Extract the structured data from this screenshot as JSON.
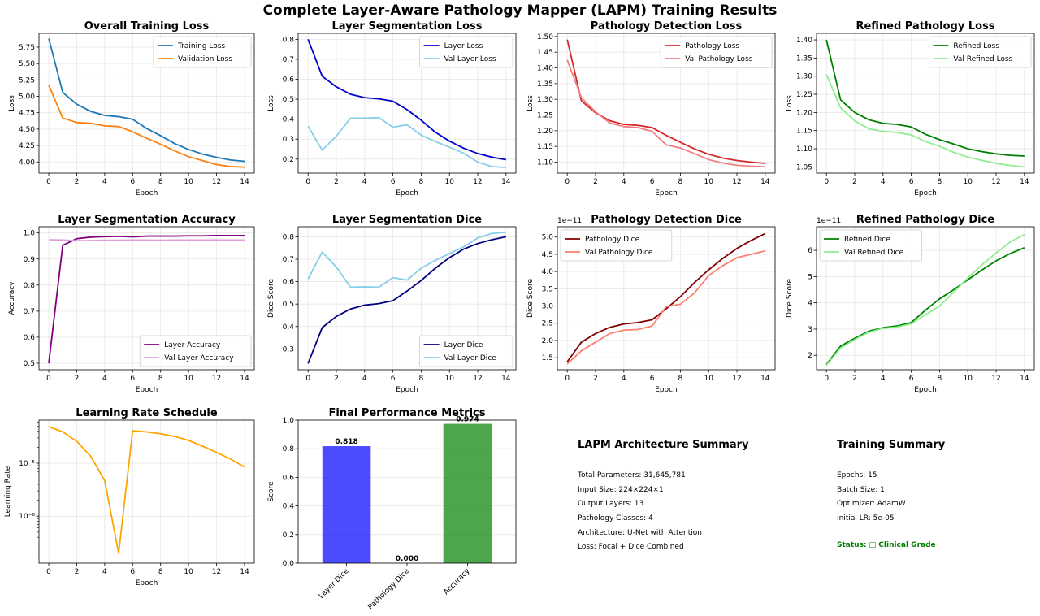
{
  "figure_title": "Complete Layer-Aware Pathology Mapper (LAPM) Training Results",
  "colors": {
    "training_loss": "#1f77b4",
    "validation_loss": "#ff7f0e",
    "layer": "#0000cd",
    "val_layer": "#87ceeb",
    "pathology": "#d62728",
    "val_pathology": "#f08080",
    "refined": "#008000",
    "val_refined": "#90ee90",
    "accuracy": "#800080",
    "val_accuracy": "#dda0dd",
    "dice": "#000080",
    "val_dice": "#87ceeb",
    "path_dice": "#800000",
    "val_path_dice": "#fa8072",
    "lr": "#ffa500",
    "bar_layer": "#0000ff",
    "bar_pathology": "#ff0000",
    "bar_accuracy": "#008000"
  },
  "chart_data": [
    {
      "id": "overall_loss",
      "type": "line",
      "title": "Overall Training Loss",
      "xlabel": "Epoch",
      "ylabel": "Loss",
      "xlim": [
        -0.7,
        14.7
      ],
      "ylim": [
        3.83,
        5.96
      ],
      "xticks": [
        0,
        2,
        4,
        6,
        8,
        10,
        12,
        14
      ],
      "yticks": [
        4.0,
        4.25,
        4.5,
        4.75,
        5.0,
        5.25,
        5.5,
        5.75
      ],
      "ytick_labels": [
        "4.00",
        "4.25",
        "4.50",
        "4.75",
        "5.00",
        "5.25",
        "5.50",
        "5.75"
      ],
      "legend": "upper right",
      "x": [
        0,
        1,
        2,
        3,
        4,
        5,
        6,
        7,
        8,
        9,
        10,
        11,
        12,
        13,
        14
      ],
      "series": [
        {
          "name": "Training Loss",
          "color_key": "training_loss",
          "values": [
            5.88,
            5.06,
            4.88,
            4.77,
            4.71,
            4.69,
            4.65,
            4.51,
            4.4,
            4.28,
            4.19,
            4.12,
            4.07,
            4.03,
            4.01
          ]
        },
        {
          "name": "Validation Loss",
          "color_key": "validation_loss",
          "values": [
            5.17,
            4.67,
            4.6,
            4.59,
            4.55,
            4.54,
            4.46,
            4.36,
            4.27,
            4.17,
            4.08,
            4.02,
            3.96,
            3.93,
            3.92
          ]
        }
      ]
    },
    {
      "id": "layer_seg_loss",
      "type": "line",
      "title": "Layer Segmentation Loss",
      "xlabel": "Epoch",
      "ylabel": "Loss",
      "xlim": [
        -0.7,
        14.7
      ],
      "ylim": [
        0.13,
        0.83
      ],
      "xticks": [
        0,
        2,
        4,
        6,
        8,
        10,
        12,
        14
      ],
      "yticks": [
        0.2,
        0.3,
        0.4,
        0.5,
        0.6,
        0.7,
        0.8
      ],
      "ytick_labels": [
        "0.2",
        "0.3",
        "0.4",
        "0.5",
        "0.6",
        "0.7",
        "0.8"
      ],
      "legend": "upper right",
      "x": [
        0,
        1,
        2,
        3,
        4,
        5,
        6,
        7,
        8,
        9,
        10,
        11,
        12,
        13,
        14
      ],
      "series": [
        {
          "name": "Layer Loss",
          "color_key": "layer",
          "values": [
            0.8,
            0.615,
            0.562,
            0.525,
            0.508,
            0.502,
            0.49,
            0.448,
            0.395,
            0.335,
            0.29,
            0.255,
            0.228,
            0.21,
            0.197
          ]
        },
        {
          "name": "Val Layer Loss",
          "color_key": "val_layer",
          "values": [
            0.365,
            0.245,
            0.315,
            0.405,
            0.405,
            0.408,
            0.36,
            0.372,
            0.32,
            0.288,
            0.26,
            0.23,
            0.185,
            0.163,
            0.158
          ]
        }
      ]
    },
    {
      "id": "pathology_det_loss",
      "type": "line",
      "title": "Pathology Detection Loss",
      "xlabel": "Epoch",
      "ylabel": "Loss",
      "xlim": [
        -0.7,
        14.7
      ],
      "ylim": [
        1.065,
        1.51
      ],
      "xticks": [
        0,
        2,
        4,
        6,
        8,
        10,
        12,
        14
      ],
      "yticks": [
        1.1,
        1.15,
        1.2,
        1.25,
        1.3,
        1.35,
        1.4,
        1.45,
        1.5
      ],
      "ytick_labels": [
        "1.10",
        "1.15",
        "1.20",
        "1.25",
        "1.30",
        "1.35",
        "1.40",
        "1.45",
        "1.50"
      ],
      "legend": "upper right",
      "x": [
        0,
        1,
        2,
        3,
        4,
        5,
        6,
        7,
        8,
        9,
        10,
        11,
        12,
        13,
        14
      ],
      "series": [
        {
          "name": "Pathology Loss",
          "color_key": "pathology",
          "values": [
            1.49,
            1.295,
            1.257,
            1.232,
            1.22,
            1.217,
            1.21,
            1.185,
            1.163,
            1.142,
            1.125,
            1.113,
            1.105,
            1.1,
            1.096
          ]
        },
        {
          "name": "Val Pathology Loss",
          "color_key": "val_pathology",
          "values": [
            1.425,
            1.305,
            1.26,
            1.225,
            1.213,
            1.21,
            1.198,
            1.155,
            1.145,
            1.127,
            1.108,
            1.097,
            1.09,
            1.087,
            1.085
          ]
        }
      ]
    },
    {
      "id": "refined_path_loss",
      "type": "line",
      "title": "Refined Pathology Loss",
      "xlabel": "Epoch",
      "ylabel": "Loss",
      "xlim": [
        -0.7,
        14.7
      ],
      "ylim": [
        1.033,
        1.418
      ],
      "xticks": [
        0,
        2,
        4,
        6,
        8,
        10,
        12,
        14
      ],
      "yticks": [
        1.05,
        1.1,
        1.15,
        1.2,
        1.25,
        1.3,
        1.35,
        1.4
      ],
      "ytick_labels": [
        "1.05",
        "1.10",
        "1.15",
        "1.20",
        "1.25",
        "1.30",
        "1.35",
        "1.40"
      ],
      "legend": "upper right",
      "x": [
        0,
        1,
        2,
        3,
        4,
        5,
        6,
        7,
        8,
        9,
        10,
        11,
        12,
        13,
        14
      ],
      "series": [
        {
          "name": "Refined Loss",
          "color_key": "refined",
          "values": [
            1.4,
            1.235,
            1.2,
            1.18,
            1.17,
            1.167,
            1.16,
            1.14,
            1.125,
            1.113,
            1.1,
            1.092,
            1.086,
            1.082,
            1.08
          ]
        },
        {
          "name": "Val Refined Loss",
          "color_key": "val_refined",
          "values": [
            1.305,
            1.213,
            1.177,
            1.155,
            1.148,
            1.145,
            1.138,
            1.12,
            1.107,
            1.09,
            1.077,
            1.068,
            1.06,
            1.054,
            1.05
          ]
        }
      ]
    },
    {
      "id": "layer_seg_acc",
      "type": "line",
      "title": "Layer Segmentation Accuracy",
      "xlabel": "Epoch",
      "ylabel": "Accuracy",
      "xlim": [
        -0.7,
        14.7
      ],
      "ylim": [
        0.475,
        1.024
      ],
      "xticks": [
        0,
        2,
        4,
        6,
        8,
        10,
        12,
        14
      ],
      "yticks": [
        0.5,
        0.6,
        0.7,
        0.8,
        0.9,
        1.0
      ],
      "ytick_labels": [
        "0.5",
        "0.6",
        "0.7",
        "0.8",
        "0.9",
        "1.0"
      ],
      "legend": "lower right",
      "x": [
        0,
        1,
        2,
        3,
        4,
        5,
        6,
        7,
        8,
        9,
        10,
        11,
        12,
        13,
        14
      ],
      "series": [
        {
          "name": "Layer Accuracy",
          "color_key": "accuracy",
          "values": [
            0.5,
            0.953,
            0.978,
            0.984,
            0.986,
            0.987,
            0.985,
            0.988,
            0.988,
            0.988,
            0.989,
            0.989,
            0.99,
            0.99,
            0.99
          ]
        },
        {
          "name": "Val Layer Accuracy",
          "color_key": "val_accuracy",
          "values": [
            0.974,
            0.973,
            0.97,
            0.971,
            0.972,
            0.972,
            0.973,
            0.973,
            0.972,
            0.973,
            0.973,
            0.973,
            0.973,
            0.973,
            0.973
          ]
        }
      ]
    },
    {
      "id": "layer_seg_dice",
      "type": "line",
      "title": "Layer Segmentation Dice",
      "xlabel": "Epoch",
      "ylabel": "Dice Score",
      "xlim": [
        -0.7,
        14.7
      ],
      "ylim": [
        0.207,
        0.845
      ],
      "xticks": [
        0,
        2,
        4,
        6,
        8,
        10,
        12,
        14
      ],
      "yticks": [
        0.3,
        0.4,
        0.5,
        0.6,
        0.7,
        0.8
      ],
      "ytick_labels": [
        "0.3",
        "0.4",
        "0.5",
        "0.6",
        "0.7",
        "0.8"
      ],
      "legend": "lower right",
      "x": [
        0,
        1,
        2,
        3,
        4,
        5,
        6,
        7,
        8,
        9,
        10,
        11,
        12,
        13,
        14
      ],
      "series": [
        {
          "name": "Layer Dice",
          "color_key": "dice",
          "values": [
            0.235,
            0.395,
            0.445,
            0.478,
            0.495,
            0.502,
            0.515,
            0.558,
            0.605,
            0.66,
            0.707,
            0.745,
            0.77,
            0.787,
            0.8
          ]
        },
        {
          "name": "Val Layer Dice",
          "color_key": "val_dice",
          "values": [
            0.612,
            0.732,
            0.665,
            0.575,
            0.577,
            0.575,
            0.618,
            0.607,
            0.66,
            0.695,
            0.725,
            0.755,
            0.795,
            0.815,
            0.82
          ]
        }
      ]
    },
    {
      "id": "path_det_dice",
      "type": "line",
      "title": "Pathology Detection Dice",
      "xlabel": "Epoch",
      "ylabel": "Dice Score",
      "offset_text": "1e−11",
      "xlim": [
        -0.7,
        14.7
      ],
      "ylim": [
        1.15,
        5.3
      ],
      "xticks": [
        0,
        2,
        4,
        6,
        8,
        10,
        12,
        14
      ],
      "yticks": [
        1.5,
        2.0,
        2.5,
        3.0,
        3.5,
        4.0,
        4.5,
        5.0
      ],
      "ytick_labels": [
        "1.5",
        "2.0",
        "2.5",
        "3.0",
        "3.5",
        "4.0",
        "4.5",
        "5.0"
      ],
      "legend": "upper left",
      "x": [
        0,
        1,
        2,
        3,
        4,
        5,
        6,
        7,
        8,
        9,
        10,
        11,
        12,
        13,
        14
      ],
      "series": [
        {
          "name": "Pathology Dice",
          "color_key": "path_dice",
          "values": [
            1.38,
            1.95,
            2.2,
            2.38,
            2.48,
            2.52,
            2.6,
            2.92,
            3.27,
            3.68,
            4.05,
            4.38,
            4.67,
            4.9,
            5.1
          ]
        },
        {
          "name": "Val Pathology Dice",
          "color_key": "val_path_dice",
          "values": [
            1.32,
            1.7,
            1.95,
            2.2,
            2.3,
            2.32,
            2.42,
            2.98,
            3.05,
            3.38,
            3.88,
            4.17,
            4.4,
            4.5,
            4.6
          ]
        }
      ]
    },
    {
      "id": "refined_path_dice",
      "type": "line",
      "title": "Refined Pathology Dice",
      "xlabel": "Epoch",
      "ylabel": "Dice Score",
      "offset_text": "1e−11",
      "xlim": [
        -0.7,
        14.7
      ],
      "ylim": [
        1.45,
        6.9
      ],
      "xticks": [
        0,
        2,
        4,
        6,
        8,
        10,
        12,
        14
      ],
      "yticks": [
        2,
        3,
        4,
        5,
        6
      ],
      "ytick_labels": [
        "2",
        "3",
        "4",
        "5",
        "6"
      ],
      "legend": "upper left",
      "x": [
        0,
        1,
        2,
        3,
        4,
        5,
        6,
        7,
        8,
        9,
        10,
        11,
        12,
        13,
        14
      ],
      "series": [
        {
          "name": "Refined Dice",
          "color_key": "refined",
          "values": [
            1.65,
            2.35,
            2.65,
            2.92,
            3.05,
            3.12,
            3.25,
            3.72,
            4.15,
            4.5,
            4.88,
            5.25,
            5.6,
            5.88,
            6.1
          ]
        },
        {
          "name": "Val Refined Dice",
          "color_key": "val_refined",
          "values": [
            1.62,
            2.28,
            2.6,
            2.88,
            3.03,
            3.08,
            3.2,
            3.55,
            3.88,
            4.4,
            4.95,
            5.45,
            5.9,
            6.32,
            6.6
          ]
        }
      ]
    },
    {
      "id": "lr_schedule",
      "type": "line",
      "yscale": "log",
      "title": "Learning Rate Schedule",
      "xlabel": "Epoch",
      "ylabel": "Learning Rate",
      "xlim": [
        -0.7,
        14.7
      ],
      "ylim": [
        1.3e-07,
        6.5e-05
      ],
      "xticks": [
        0,
        2,
        4,
        6,
        8,
        10,
        12,
        14
      ],
      "yticks": [
        1e-06,
        1e-05
      ],
      "ytick_labels": [
        "10⁻⁶",
        "10⁻⁵"
      ],
      "x": [
        0,
        1,
        2,
        3,
        4,
        5,
        6,
        7,
        8,
        9,
        10,
        11,
        12,
        13,
        14
      ],
      "series": [
        {
          "name": "",
          "color_key": "lr",
          "values": [
            4.9e-05,
            3.9e-05,
            2.6e-05,
            1.35e-05,
            4.7e-06,
            2e-07,
            4.1e-05,
            3.9e-05,
            3.6e-05,
            3.2e-05,
            2.7e-05,
            2.1e-05,
            1.6e-05,
            1.2e-05,
            8.5e-06
          ]
        }
      ]
    },
    {
      "id": "final_metrics",
      "type": "bar",
      "title": "Final Performance Metrics",
      "xlabel": "",
      "ylabel": "Score",
      "ylim": [
        0,
        1.0
      ],
      "yticks": [
        0.0,
        0.2,
        0.4,
        0.6,
        0.8,
        1.0
      ],
      "ytick_labels": [
        "0.0",
        "0.2",
        "0.4",
        "0.6",
        "0.8",
        "1.0"
      ],
      "categories": [
        "Layer Dice",
        "Pathology Dice",
        "Accuracy"
      ],
      "values": [
        0.818,
        0.0,
        0.974
      ],
      "value_labels": [
        "0.818",
        "0.000",
        "0.974"
      ],
      "color_keys": [
        "bar_layer",
        "bar_pathology",
        "bar_accuracy"
      ]
    }
  ],
  "arch_summary": {
    "title": "LAPM Architecture Summary",
    "lines": [
      "Total Parameters: 31,645,781",
      "Input Size: 224×224×1",
      "Output Layers: 13",
      "Pathology Classes: 4",
      "Architecture: U-Net with Attention",
      "Loss: Focal + Dice Combined"
    ]
  },
  "training_summary": {
    "title": "Training Summary",
    "lines": [
      "Epochs: 15",
      "Batch Size: 1",
      "Optimizer: AdamW",
      "Initial LR: 5e-05"
    ],
    "status": "Status: □ Clinical Grade",
    "status_color": "#008000"
  }
}
